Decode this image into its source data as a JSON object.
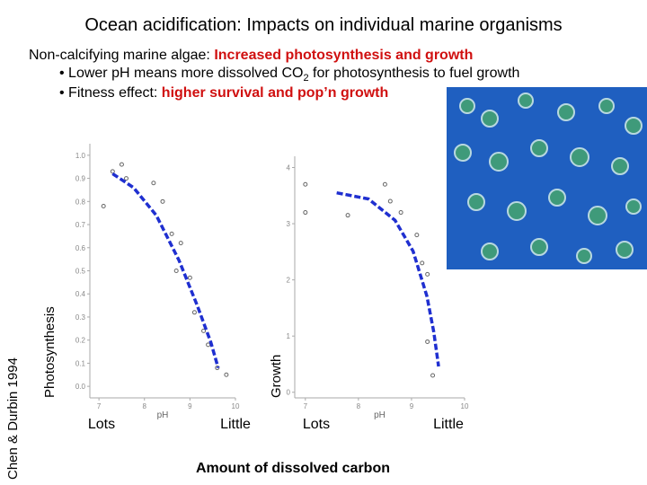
{
  "title": "Ocean acidification: Impacts on individual marine organisms",
  "lines": [
    {
      "parts": [
        "Non-calcifying marine algae: ",
        "Increased photosynthesis and growth"
      ]
    },
    {
      "parts": [
        "• Lower pH means more dissolved CO",
        "2",
        " for photosynthesis to fuel growth"
      ]
    },
    {
      "parts": [
        "• Fitness effect: ",
        "higher survival and pop’n growth"
      ]
    }
  ],
  "credit": "Chen & Durbin 1994",
  "caption": "Amount of dissolved carbon",
  "chart_data": [
    {
      "type": "scatter",
      "ylabel": "Photosynthesis",
      "xlabel": "pH",
      "x_annotations": [
        "Lots",
        "Little"
      ],
      "xlim": [
        6.8,
        10
      ],
      "xticks": [
        7,
        8,
        9,
        10
      ],
      "ylim": [
        -0.05,
        1.05
      ],
      "yticks": [
        {
          "value": 0,
          "label": "0.0"
        },
        0.1,
        0.2,
        0.3,
        0.4,
        0.5,
        0.6,
        0.7,
        0.8,
        0.9,
        {
          "value": 1,
          "label": "1.0"
        }
      ],
      "series": [
        {
          "type": "markers",
          "color": "#666666",
          "x": [
            7.3,
            7.5,
            7.6,
            7.1,
            8.2,
            8.4,
            8.6,
            8.8,
            8.7,
            9.0,
            9.1,
            9.3,
            9.4,
            9.6,
            9.8
          ],
          "values": [
            0.93,
            0.96,
            0.9,
            0.78,
            0.88,
            0.8,
            0.66,
            0.62,
            0.5,
            0.47,
            0.32,
            0.24,
            0.18,
            0.08,
            0.05
          ]
        },
        {
          "type": "line",
          "dash": true,
          "color": "#1f2fd0",
          "x": [
            7.3,
            7.76,
            8.26,
            8.76,
            9.16,
            9.46,
            9.62
          ],
          "values": [
            0.92,
            0.86,
            0.74,
            0.545,
            0.35,
            0.19,
            0.08
          ]
        }
      ]
    },
    {
      "type": "scatter",
      "ylabel": "Growth",
      "xlabel": "pH",
      "x_annotations": [
        "Lots",
        "Little"
      ],
      "xlim": [
        6.8,
        10
      ],
      "xticks": [
        7,
        8,
        9,
        10
      ],
      "ylim": [
        -0.1,
        4.2
      ],
      "yticks": [
        0,
        1,
        2,
        3,
        4
      ],
      "series": [
        {
          "type": "markers",
          "color": "#666666",
          "x": [
            7.0,
            7.0,
            8.5,
            8.6,
            8.8,
            9.1,
            9.2,
            9.3,
            9.3,
            9.4,
            7.8
          ],
          "values": [
            3.7,
            3.2,
            3.7,
            3.4,
            3.2,
            2.8,
            2.3,
            2.1,
            0.9,
            0.3,
            3.15
          ]
        },
        {
          "type": "line",
          "dash": true,
          "color": "#1f2fd0",
          "x": [
            7.59,
            8.19,
            8.69,
            9.03,
            9.29,
            9.42,
            9.51
          ],
          "values": [
            3.55,
            3.44,
            3.06,
            2.51,
            1.71,
            1.07,
            0.46
          ]
        }
      ]
    }
  ]
}
